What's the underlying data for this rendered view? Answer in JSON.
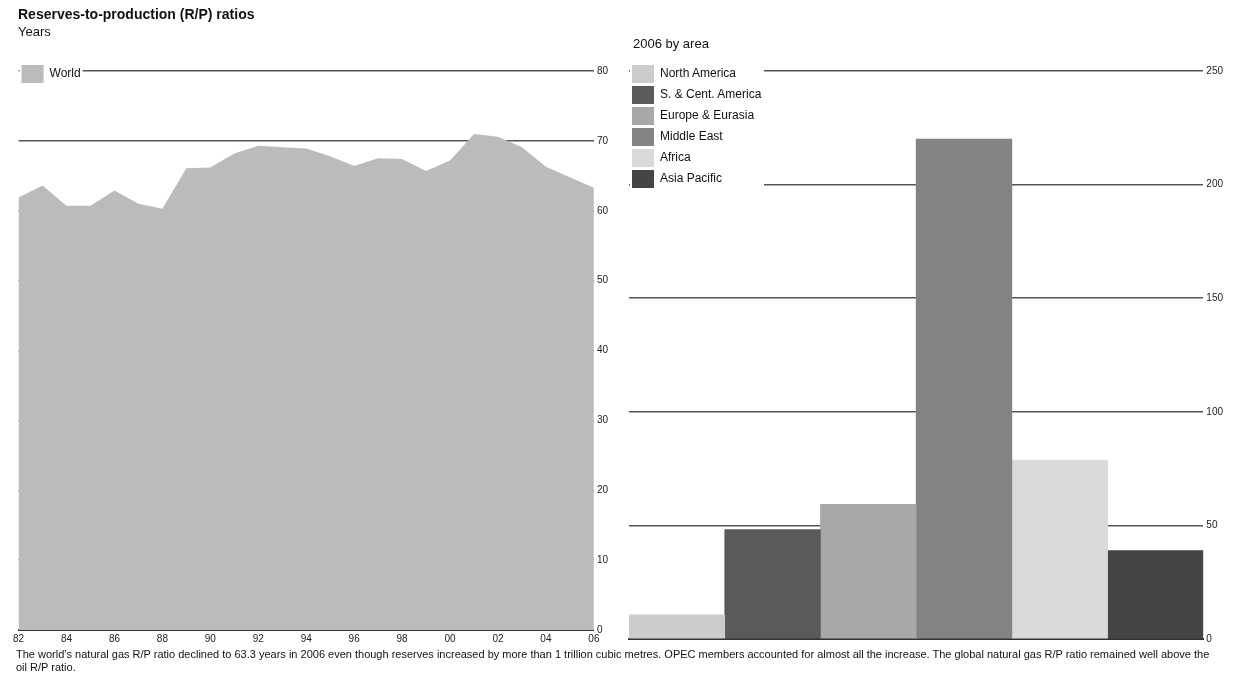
{
  "chart_data": [
    {
      "type": "area",
      "title": "Reserves-to-production (R/P) ratios",
      "ylabel": "Years",
      "x": [
        1982,
        1983,
        1984,
        1985,
        1986,
        1987,
        1988,
        1989,
        1990,
        1991,
        1992,
        1993,
        1994,
        1995,
        1996,
        1997,
        1998,
        1999,
        2000,
        2001,
        2002,
        2003,
        2004,
        2005,
        2006
      ],
      "series": [
        {
          "name": "World",
          "color": "#bbbbbb",
          "values": [
            61.9,
            63.6,
            60.7,
            60.7,
            62.9,
            61.0,
            60.3,
            66.1,
            66.2,
            68.2,
            69.3,
            69.1,
            68.9,
            67.8,
            66.4,
            67.5,
            67.4,
            65.7,
            67.2,
            71.0,
            70.6,
            69.1,
            66.3,
            64.8,
            63.3
          ]
        }
      ],
      "xlim": [
        1982,
        2006
      ],
      "xticks": [
        {
          "value": 1982,
          "label": "82"
        },
        {
          "value": 1984,
          "label": "84"
        },
        {
          "value": 1986,
          "label": "86"
        },
        {
          "value": 1988,
          "label": "88"
        },
        {
          "value": 1990,
          "label": "90"
        },
        {
          "value": 1992,
          "label": "92"
        },
        {
          "value": 1994,
          "label": "94"
        },
        {
          "value": 1996,
          "label": "96"
        },
        {
          "value": 1998,
          "label": "98"
        },
        {
          "value": 2000,
          "label": "00"
        },
        {
          "value": 2002,
          "label": "02"
        },
        {
          "value": 2004,
          "label": "04"
        },
        {
          "value": 2006,
          "label": "06"
        }
      ],
      "ylim": [
        0,
        80
      ],
      "yticks": [
        0,
        10,
        20,
        30,
        40,
        50,
        60,
        70,
        80
      ],
      "grid": "y",
      "legend": "top left",
      "annotations": [
        "The world’s natural gas R/P ratio declined to 63.3 years in 2006 even though reserves increased by more than 1 trillion cubic metres. OPEC members accounted for almost all the increase. The global natural gas R/P ratio remained well above the oil R/P ratio."
      ]
    },
    {
      "type": "bar",
      "title": "2006 by area",
      "categories": [
        null,
        null,
        null,
        null,
        null,
        null
      ],
      "series": [
        {
          "name": "North America",
          "color": "#cccccc",
          "values": [
            10.6,
            null,
            null,
            null,
            null,
            null
          ]
        },
        {
          "name": "S. & Cent. America",
          "color": "#5a5a5a",
          "values": [
            null,
            48.2,
            null,
            null,
            null,
            null
          ]
        },
        {
          "name": "Europe & Eurasia",
          "color": "#a8a8a8",
          "values": [
            null,
            null,
            59.3,
            null,
            null,
            null
          ]
        },
        {
          "name": "Middle East",
          "color": "#838383",
          "values": [
            null,
            null,
            null,
            220,
            null,
            null
          ]
        },
        {
          "name": "Africa",
          "color": "#dadada",
          "values": [
            null,
            null,
            null,
            null,
            78.8,
            null
          ]
        },
        {
          "name": "Asia Pacific",
          "color": "#454545",
          "values": [
            null,
            null,
            null,
            null,
            null,
            38.9
          ]
        }
      ],
      "ylim": [
        0,
        250
      ],
      "yticks": [
        0,
        50,
        100,
        150,
        200,
        250
      ],
      "grid": "y",
      "legend": "top left",
      "tick_labels": "y"
    }
  ]
}
